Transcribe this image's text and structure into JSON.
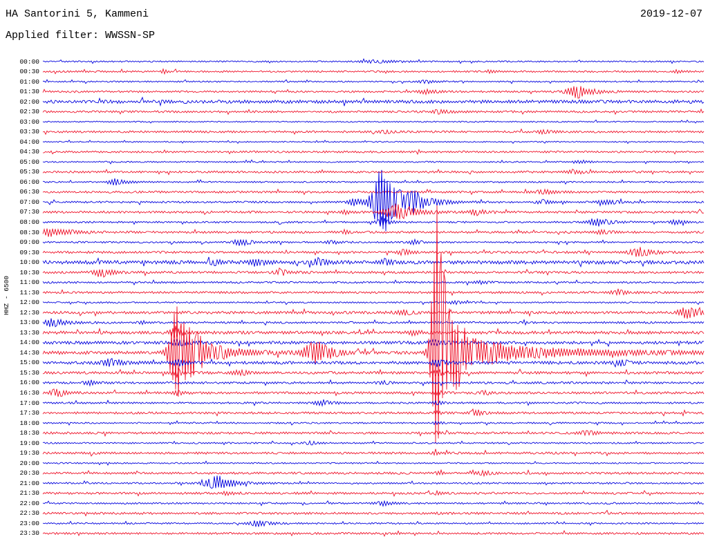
{
  "header": {
    "station_title": "HA Santorini 5, Kammeni",
    "date": "2019-12-07",
    "filter_label": "Applied filter: WWSSN-SP"
  },
  "axis": {
    "channel_label": "HHZ - 6500"
  },
  "colors": {
    "blue": "#0000dd",
    "red": "#ee1128"
  },
  "chart_data": {
    "type": "helicorder",
    "row_duration_min": 30,
    "event_schema": {
      "m": "minutes after row start",
      "a": "peak amplitude px",
      "r": "rise width px",
      "d": "decay length px"
    },
    "rows": [
      {
        "time": "00:00",
        "color": "blue",
        "noise": 1.0,
        "events": [
          {
            "m": 15.3,
            "a": 2,
            "r": 20,
            "d": 30
          }
        ]
      },
      {
        "time": "00:30",
        "color": "red",
        "noise": 1.2,
        "events": [
          {
            "m": 5.5,
            "a": 4,
            "r": 3,
            "d": 5
          },
          {
            "m": 20.3,
            "a": 3,
            "r": 3,
            "d": 6
          },
          {
            "m": 28.8,
            "a": 2,
            "r": 5,
            "d": 8
          }
        ]
      },
      {
        "time": "01:00",
        "color": "blue",
        "noise": 1.0,
        "events": [
          {
            "m": 17.4,
            "a": 2.5,
            "r": 8,
            "d": 12
          }
        ]
      },
      {
        "time": "01:30",
        "color": "red",
        "noise": 1.3,
        "events": [
          {
            "m": 17.5,
            "a": 3,
            "r": 10,
            "d": 15
          },
          {
            "m": 24.3,
            "a": 9,
            "r": 12,
            "d": 22
          }
        ]
      },
      {
        "time": "02:00",
        "color": "blue",
        "noise": 2.2,
        "events": []
      },
      {
        "time": "02:30",
        "color": "red",
        "noise": 1.4,
        "events": [
          {
            "m": 18.1,
            "a": 3,
            "r": 10,
            "d": 14
          }
        ]
      },
      {
        "time": "03:00",
        "color": "blue",
        "noise": 0.9,
        "events": []
      },
      {
        "time": "03:30",
        "color": "red",
        "noise": 1.4,
        "events": [
          {
            "m": 15.6,
            "a": 2.5,
            "r": 8,
            "d": 10
          },
          {
            "m": 22.8,
            "a": 3,
            "r": 8,
            "d": 12
          }
        ]
      },
      {
        "time": "04:00",
        "color": "blue",
        "noise": 0.9,
        "events": []
      },
      {
        "time": "04:30",
        "color": "red",
        "noise": 1.3,
        "events": []
      },
      {
        "time": "05:00",
        "color": "blue",
        "noise": 1.0,
        "events": [
          {
            "m": 24.4,
            "a": 2.5,
            "r": 8,
            "d": 12
          }
        ]
      },
      {
        "time": "05:30",
        "color": "red",
        "noise": 1.4,
        "events": [
          {
            "m": 24.1,
            "a": 3,
            "r": 8,
            "d": 14
          }
        ]
      },
      {
        "time": "06:00",
        "color": "blue",
        "noise": 1.1,
        "events": [
          {
            "m": 3.3,
            "a": 5,
            "r": 8,
            "d": 14
          }
        ]
      },
      {
        "time": "06:30",
        "color": "red",
        "noise": 1.4,
        "events": [
          {
            "m": 22.8,
            "a": 3.5,
            "r": 10,
            "d": 16
          }
        ]
      },
      {
        "time": "07:00",
        "color": "blue",
        "noise": 1.3,
        "events": [
          {
            "m": 14.2,
            "a": 6,
            "r": 8,
            "d": 10
          },
          {
            "m": 15.4,
            "a": 55,
            "r": 10,
            "d": 22
          },
          {
            "m": 16.9,
            "a": 10,
            "r": 10,
            "d": 25
          },
          {
            "m": 22.8,
            "a": 3,
            "r": 10,
            "d": 14
          },
          {
            "m": 25.7,
            "a": 3.5,
            "r": 10,
            "d": 16
          }
        ]
      },
      {
        "time": "07:30",
        "color": "red",
        "noise": 1.5,
        "events": [
          {
            "m": 13.7,
            "a": 5,
            "r": 4,
            "d": 6
          },
          {
            "m": 16.1,
            "a": 13,
            "r": 12,
            "d": 25
          },
          {
            "m": 19.7,
            "a": 4,
            "r": 8,
            "d": 12
          }
        ]
      },
      {
        "time": "08:00",
        "color": "blue",
        "noise": 1.2,
        "events": [
          {
            "m": 15.4,
            "a": 8,
            "r": 6,
            "d": 10
          },
          {
            "m": 25.2,
            "a": 6,
            "r": 10,
            "d": 18
          },
          {
            "m": 28.8,
            "a": 3,
            "r": 8,
            "d": 12
          }
        ]
      },
      {
        "time": "08:30",
        "color": "red",
        "noise": 1.5,
        "events": [
          {
            "m": 0.2,
            "a": 8,
            "r": 4,
            "d": 25
          },
          {
            "m": 13.7,
            "a": 4,
            "r": 3,
            "d": 5
          },
          {
            "m": 25.4,
            "a": 3,
            "r": 8,
            "d": 12
          }
        ]
      },
      {
        "time": "09:00",
        "color": "blue",
        "noise": 1.2,
        "events": [
          {
            "m": 9,
            "a": 5,
            "r": 8,
            "d": 14
          },
          {
            "m": 13.1,
            "a": 3,
            "r": 6,
            "d": 10
          },
          {
            "m": 16.9,
            "a": 3.5,
            "r": 6,
            "d": 10
          }
        ]
      },
      {
        "time": "09:30",
        "color": "red",
        "noise": 1.5,
        "events": [
          {
            "m": 16.4,
            "a": 4,
            "r": 8,
            "d": 12
          },
          {
            "m": 27.1,
            "a": 7,
            "r": 10,
            "d": 18
          }
        ]
      },
      {
        "time": "10:00",
        "color": "blue",
        "noise": 2.4,
        "events": [
          {
            "m": 7.8,
            "a": 4,
            "r": 6,
            "d": 10
          },
          {
            "m": 9.7,
            "a": 6,
            "r": 6,
            "d": 10
          },
          {
            "m": 12.5,
            "a": 5,
            "r": 6,
            "d": 10
          },
          {
            "m": 15.6,
            "a": 4,
            "r": 6,
            "d": 10
          }
        ]
      },
      {
        "time": "10:30",
        "color": "red",
        "noise": 1.6,
        "events": [
          {
            "m": 2.7,
            "a": 7,
            "r": 8,
            "d": 16
          },
          {
            "m": 10.9,
            "a": 4,
            "r": 8,
            "d": 12
          }
        ]
      },
      {
        "time": "11:00",
        "color": "blue",
        "noise": 1.3,
        "events": [
          {
            "m": 20,
            "a": 2.5,
            "r": 8,
            "d": 10
          }
        ]
      },
      {
        "time": "11:30",
        "color": "red",
        "noise": 1.5,
        "events": [
          {
            "m": 26.1,
            "a": 4,
            "r": 8,
            "d": 14
          }
        ]
      },
      {
        "time": "12:00",
        "color": "blue",
        "noise": 1.1,
        "events": [
          {
            "m": 18.8,
            "a": 2.5,
            "r": 8,
            "d": 10
          }
        ]
      },
      {
        "time": "12:30",
        "color": "red",
        "noise": 1.8,
        "events": [
          {
            "m": 16.4,
            "a": 4,
            "r": 8,
            "d": 12
          },
          {
            "m": 29.3,
            "a": 8,
            "r": 10,
            "d": 20
          }
        ]
      },
      {
        "time": "13:00",
        "color": "blue",
        "noise": 1.4,
        "events": [
          {
            "m": 0.4,
            "a": 7,
            "r": 6,
            "d": 18
          },
          {
            "m": 4.5,
            "a": 3,
            "r": 4,
            "d": 6
          }
        ]
      },
      {
        "time": "13:30",
        "color": "red",
        "noise": 2.0,
        "events": [
          {
            "m": 6,
            "a": 9,
            "r": 5,
            "d": 10
          },
          {
            "m": 16.9,
            "a": 3,
            "r": 8,
            "d": 10
          }
        ]
      },
      {
        "time": "14:00",
        "color": "blue",
        "noise": 2.0,
        "events": [
          {
            "m": 6.2,
            "a": 6,
            "r": 6,
            "d": 12
          },
          {
            "m": 17.8,
            "a": 4,
            "r": 6,
            "d": 10
          }
        ]
      },
      {
        "time": "14:30",
        "color": "red",
        "noise": 2.2,
        "events": [
          {
            "m": 6.1,
            "a": 75,
            "r": 8,
            "d": 16
          },
          {
            "m": 7,
            "a": 18,
            "r": 10,
            "d": 40
          },
          {
            "m": 12.5,
            "a": 18,
            "r": 14,
            "d": 18
          },
          {
            "m": 17.9,
            "a": 230,
            "r": 6,
            "d": 14
          },
          {
            "m": 18.7,
            "a": 30,
            "r": 8,
            "d": 35
          },
          {
            "m": 20.6,
            "a": 9,
            "r": 20,
            "d": 150
          }
        ]
      },
      {
        "time": "15:00",
        "color": "blue",
        "noise": 2.0,
        "events": [
          {
            "m": 3.1,
            "a": 6,
            "r": 10,
            "d": 16
          },
          {
            "m": 6.2,
            "a": 5,
            "r": 6,
            "d": 10
          },
          {
            "m": 17.9,
            "a": 6,
            "r": 5,
            "d": 10
          },
          {
            "m": 26.3,
            "a": 4,
            "r": 8,
            "d": 14
          }
        ]
      },
      {
        "time": "15:30",
        "color": "red",
        "noise": 1.8,
        "events": [
          {
            "m": 6.1,
            "a": 6,
            "r": 5,
            "d": 10
          },
          {
            "m": 9,
            "a": 4,
            "r": 8,
            "d": 12
          },
          {
            "m": 17.9,
            "a": 5,
            "r": 5,
            "d": 10
          }
        ]
      },
      {
        "time": "16:00",
        "color": "blue",
        "noise": 1.5,
        "events": [
          {
            "m": 2.1,
            "a": 4,
            "r": 6,
            "d": 10
          },
          {
            "m": 15.5,
            "a": 3,
            "r": 6,
            "d": 10
          }
        ]
      },
      {
        "time": "16:30",
        "color": "red",
        "noise": 1.6,
        "events": [
          {
            "m": 0.6,
            "a": 6,
            "r": 6,
            "d": 14
          },
          {
            "m": 6.1,
            "a": 4,
            "r": 4,
            "d": 8
          },
          {
            "m": 17.9,
            "a": 4,
            "r": 4,
            "d": 8
          },
          {
            "m": 20,
            "a": 3,
            "r": 6,
            "d": 10
          }
        ]
      },
      {
        "time": "17:00",
        "color": "blue",
        "noise": 1.3,
        "events": [
          {
            "m": 12.7,
            "a": 5,
            "r": 8,
            "d": 12
          },
          {
            "m": 17.9,
            "a": 3,
            "r": 4,
            "d": 8
          }
        ]
      },
      {
        "time": "17:30",
        "color": "red",
        "noise": 1.5,
        "events": [
          {
            "m": 17.9,
            "a": 3,
            "r": 4,
            "d": 6
          },
          {
            "m": 19.7,
            "a": 3.5,
            "r": 8,
            "d": 12
          }
        ]
      },
      {
        "time": "18:00",
        "color": "blue",
        "noise": 1.1,
        "events": [
          {
            "m": 17.9,
            "a": 2.5,
            "r": 4,
            "d": 6
          }
        ]
      },
      {
        "time": "18:30",
        "color": "red",
        "noise": 1.5,
        "events": [
          {
            "m": 17.9,
            "a": 2.5,
            "r": 4,
            "d": 6
          },
          {
            "m": 24.7,
            "a": 4,
            "r": 8,
            "d": 14
          }
        ]
      },
      {
        "time": "19:00",
        "color": "blue",
        "noise": 1.1,
        "events": [
          {
            "m": 12.2,
            "a": 2.5,
            "r": 6,
            "d": 8
          }
        ]
      },
      {
        "time": "19:30",
        "color": "red",
        "noise": 1.5,
        "events": [
          {
            "m": 17.9,
            "a": 2.5,
            "r": 4,
            "d": 6
          }
        ]
      },
      {
        "time": "20:00",
        "color": "blue",
        "noise": 1.0,
        "events": []
      },
      {
        "time": "20:30",
        "color": "red",
        "noise": 1.5,
        "events": [
          {
            "m": 17.9,
            "a": 2.5,
            "r": 3,
            "d": 5
          },
          {
            "m": 20,
            "a": 3,
            "r": 8,
            "d": 12
          }
        ]
      },
      {
        "time": "21:00",
        "color": "blue",
        "noise": 1.2,
        "events": [
          {
            "m": 8,
            "a": 11,
            "r": 14,
            "d": 20
          }
        ]
      },
      {
        "time": "21:30",
        "color": "red",
        "noise": 1.5,
        "events": [
          {
            "m": 8.4,
            "a": 3,
            "r": 6,
            "d": 10
          },
          {
            "m": 17.9,
            "a": 2.5,
            "r": 3,
            "d": 5
          }
        ]
      },
      {
        "time": "22:00",
        "color": "blue",
        "noise": 1.2,
        "events": [
          {
            "m": 15.5,
            "a": 3.5,
            "r": 8,
            "d": 12
          }
        ]
      },
      {
        "time": "22:30",
        "color": "red",
        "noise": 1.5,
        "events": [
          {
            "m": 17.9,
            "a": 2,
            "r": 3,
            "d": 5
          }
        ]
      },
      {
        "time": "23:00",
        "color": "blue",
        "noise": 1.1,
        "events": [
          {
            "m": 9.8,
            "a": 5,
            "r": 10,
            "d": 14
          }
        ]
      },
      {
        "time": "23:30",
        "color": "red",
        "noise": 1.4,
        "events": []
      }
    ]
  }
}
